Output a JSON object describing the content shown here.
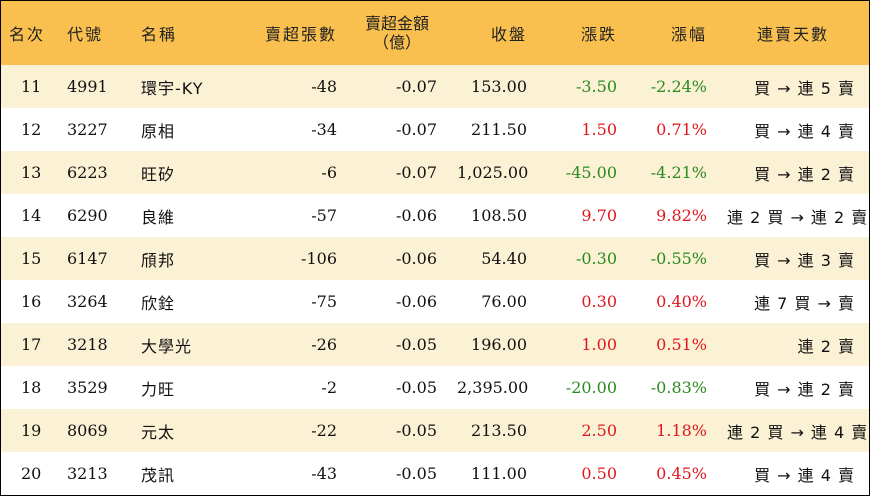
{
  "table": {
    "headers": {
      "rank": "名次",
      "code": "代號",
      "name": "名稱",
      "net_sell_lots": "賣超張數",
      "net_sell_amount_line1": "賣超金額",
      "net_sell_amount_line2": "（億）",
      "close": "收盤",
      "change": "漲跌",
      "change_pct": "漲幅",
      "streak": "連賣天數"
    },
    "rows": [
      {
        "rank": "11",
        "code": "4991",
        "name": "環宇-KY",
        "lots": "-48",
        "amount": "-0.07",
        "close": "153.00",
        "change": "-3.50",
        "pct": "-2.24%",
        "dir": "down",
        "streak": "買 → 連 5 賣"
      },
      {
        "rank": "12",
        "code": "3227",
        "name": "原相",
        "lots": "-34",
        "amount": "-0.07",
        "close": "211.50",
        "change": "1.50",
        "pct": "0.71%",
        "dir": "up",
        "streak": "買 → 連 4 賣"
      },
      {
        "rank": "13",
        "code": "6223",
        "name": "旺矽",
        "lots": "-6",
        "amount": "-0.07",
        "close": "1,025.00",
        "change": "-45.00",
        "pct": "-4.21%",
        "dir": "down",
        "streak": "買 → 連 2 賣"
      },
      {
        "rank": "14",
        "code": "6290",
        "name": "良維",
        "lots": "-57",
        "amount": "-0.06",
        "close": "108.50",
        "change": "9.70",
        "pct": "9.82%",
        "dir": "up",
        "streak": "連 2 買 → 連 2 賣"
      },
      {
        "rank": "15",
        "code": "6147",
        "name": "頎邦",
        "lots": "-106",
        "amount": "-0.06",
        "close": "54.40",
        "change": "-0.30",
        "pct": "-0.55%",
        "dir": "down",
        "streak": "買 → 連 3 賣"
      },
      {
        "rank": "16",
        "code": "3264",
        "name": "欣銓",
        "lots": "-75",
        "amount": "-0.06",
        "close": "76.00",
        "change": "0.30",
        "pct": "0.40%",
        "dir": "up",
        "streak": "連 7 買 → 賣"
      },
      {
        "rank": "17",
        "code": "3218",
        "name": "大學光",
        "lots": "-26",
        "amount": "-0.05",
        "close": "196.00",
        "change": "1.00",
        "pct": "0.51%",
        "dir": "up",
        "streak": "連 2 賣"
      },
      {
        "rank": "18",
        "code": "3529",
        "name": "力旺",
        "lots": "-2",
        "amount": "-0.05",
        "close": "2,395.00",
        "change": "-20.00",
        "pct": "-0.83%",
        "dir": "down",
        "streak": "買 → 連 2 賣"
      },
      {
        "rank": "19",
        "code": "8069",
        "name": "元太",
        "lots": "-22",
        "amount": "-0.05",
        "close": "213.50",
        "change": "2.50",
        "pct": "1.18%",
        "dir": "up",
        "streak": "連 2 買 → 連 4 賣"
      },
      {
        "rank": "20",
        "code": "3213",
        "name": "茂訊",
        "lots": "-43",
        "amount": "-0.05",
        "close": "111.00",
        "change": "0.50",
        "pct": "0.45%",
        "dir": "up",
        "streak": "買 → 連 4 賣"
      }
    ]
  },
  "colors": {
    "header_bg": "#f9c04f",
    "alt_row_bg": "#fbf1d4",
    "up": "#e1171e",
    "down": "#2a8a1f"
  }
}
